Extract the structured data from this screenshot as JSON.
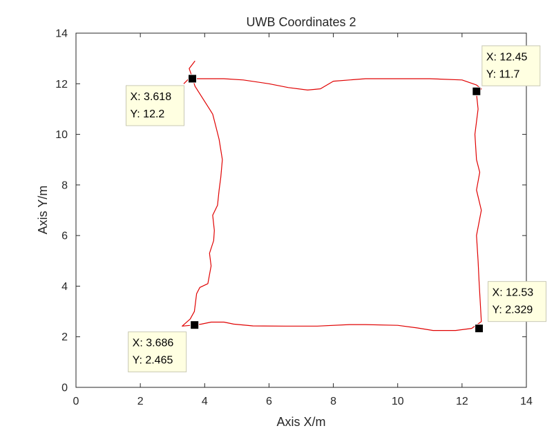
{
  "chart_data": {
    "type": "line",
    "title": "UWB Coordinates 2",
    "xlabel": "Axis X/m",
    "ylabel": "Axis Y/m",
    "xlim": [
      0,
      14
    ],
    "ylim": [
      0,
      14
    ],
    "xticks": [
      0,
      2,
      4,
      6,
      8,
      10,
      12,
      14
    ],
    "yticks": [
      0,
      2,
      4,
      6,
      8,
      10,
      12,
      14
    ],
    "grid": false,
    "series": [
      {
        "color": "#e00000",
        "x": [
          3.35,
          3.55,
          3.62,
          3.75,
          4.2,
          4.6,
          5.2,
          6.0,
          6.6,
          7.2,
          7.6,
          8.0,
          9.0,
          10.0,
          11.0,
          12.0,
          12.45,
          12.6,
          12.55,
          12.45,
          12.5,
          12.4,
          12.45,
          12.55,
          12.45,
          12.6,
          12.45,
          12.5,
          12.53,
          12.6,
          12.3,
          11.8,
          11.1,
          10.6,
          10.0,
          9.0,
          8.5,
          7.5,
          6.5,
          5.5,
          4.9,
          4.6,
          4.2,
          3.9,
          3.686,
          3.3,
          3.55,
          3.68,
          3.75,
          3.85,
          4.1,
          4.2,
          4.15,
          4.28,
          4.3,
          4.25,
          4.4,
          4.45,
          4.5,
          4.55,
          4.45,
          4.35,
          4.25,
          4.15,
          3.95,
          3.7,
          3.6,
          3.52,
          3.7
        ],
        "y": [
          12.0,
          12.25,
          12.2,
          12.2,
          12.2,
          12.2,
          12.15,
          12.0,
          11.85,
          11.75,
          11.8,
          12.1,
          12.2,
          12.2,
          12.2,
          12.15,
          11.95,
          11.8,
          11.7,
          11.6,
          11.0,
          10.0,
          9.0,
          8.5,
          7.8,
          7.0,
          6.0,
          5.0,
          4.2,
          2.6,
          2.33,
          2.25,
          2.25,
          2.35,
          2.45,
          2.48,
          2.48,
          2.42,
          2.42,
          2.43,
          2.5,
          2.58,
          2.58,
          2.5,
          2.465,
          2.42,
          2.7,
          3.0,
          3.7,
          3.95,
          4.1,
          4.8,
          5.3,
          5.8,
          6.2,
          6.8,
          7.2,
          7.8,
          8.3,
          9.0,
          9.8,
          10.3,
          10.8,
          11.0,
          11.4,
          11.9,
          12.3,
          12.6,
          12.9
        ]
      }
    ],
    "datatips": [
      {
        "x_text": "X: 3.618",
        "y_text": "Y: 12.2",
        "x": 3.618,
        "y": 12.2
      },
      {
        "x_text": "X: 12.45",
        "y_text": "Y: 11.7",
        "x": 12.45,
        "y": 11.7
      },
      {
        "x_text": "X: 3.686",
        "y_text": "Y: 2.465",
        "x": 3.686,
        "y": 2.465
      },
      {
        "x_text": "X: 12.53",
        "y_text": "Y: 2.329",
        "x": 12.53,
        "y": 2.329
      }
    ],
    "colors": {
      "line": "#e00000",
      "marker": "#000000",
      "tip_fill": "#ffffe1",
      "tip_border": "#c8c8b4"
    }
  }
}
